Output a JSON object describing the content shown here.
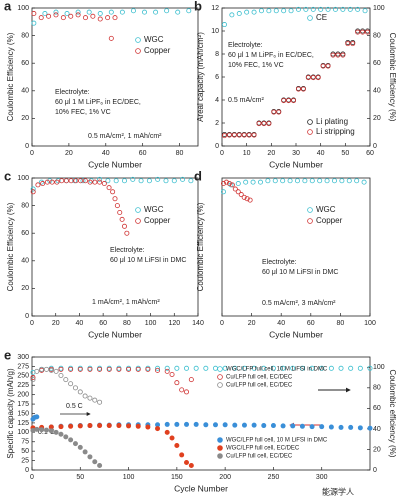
{
  "chart_data": [
    {
      "type": "scatter",
      "panel_label": "a",
      "xlabel": "Cycle Number",
      "ylabel": "Coulombic Efficiency (%)",
      "xlim": [
        0,
        90
      ],
      "xticks": [
        0,
        20,
        40,
        60,
        80
      ],
      "ylim": [
        0,
        100
      ],
      "yticks": [
        0,
        20,
        40,
        60,
        80,
        100
      ],
      "legend": "upper right",
      "annotations": [
        "Electrolyte:",
        "60 μl 1 M LiPF₆ in EC/DEC,",
        "10% FEC, 1% VC",
        "0.5 mA/cm², 1 mAh/cm²"
      ],
      "series": [
        {
          "name": "WGC",
          "color": "#3cbfcf",
          "marker": "open",
          "x": [
            1,
            7,
            13,
            19,
            25,
            31,
            37,
            43,
            49,
            55,
            61,
            67,
            73,
            79,
            85
          ],
          "values": [
            89,
            96,
            97,
            96,
            97,
            97,
            96,
            97,
            97,
            98,
            97,
            97,
            98,
            97,
            98
          ]
        },
        {
          "name": "Copper",
          "color": "#d03434",
          "marker": "open",
          "x": [
            1,
            5,
            9,
            13,
            17,
            21,
            25,
            29,
            33,
            37,
            41,
            43,
            45
          ],
          "values": [
            96,
            93,
            94,
            95,
            93,
            94,
            95,
            93,
            94,
            92,
            93,
            78,
            93
          ]
        }
      ]
    },
    {
      "type": "scatter",
      "panel_label": "b",
      "xlabel": "Cycle Number",
      "ylabel": "Areal capacity (mAh/cm²)",
      "y2label": "Coulombic Efficiency (%)",
      "xlim": [
        0,
        60
      ],
      "xticks": [
        0,
        10,
        20,
        30,
        40,
        50,
        60
      ],
      "ylim": [
        0,
        12
      ],
      "yticks": [
        0,
        2,
        4,
        6,
        8,
        10,
        12
      ],
      "y2lim": [
        0,
        100
      ],
      "y2ticks": [
        0,
        20,
        40,
        60,
        80,
        100
      ],
      "legend": "split",
      "annotations": [
        "Electrolyte:",
        "60 μl 1 M LiPF₆ in EC/DEC,",
        "10% FEC, 1% VC",
        "0.5 mA/cm²"
      ],
      "series": [
        {
          "name": "CE",
          "color": "#3cbfcf",
          "marker": "open",
          "axis": "y2",
          "x": [
            1,
            4,
            7,
            10,
            13,
            16,
            19,
            22,
            25,
            28,
            31,
            34,
            37,
            40,
            43,
            46,
            49,
            52,
            55,
            58
          ],
          "values": [
            88,
            95,
            96,
            97,
            97,
            98,
            98,
            98,
            98,
            98,
            99,
            99,
            99,
            99,
            99,
            99,
            99,
            99,
            99,
            98
          ]
        },
        {
          "name": "Li plating",
          "color": "#222222",
          "marker": "open",
          "x": [
            1,
            3,
            5,
            7,
            9,
            11,
            13,
            15,
            17,
            19,
            21,
            23,
            25,
            27,
            29,
            31,
            33,
            35,
            37,
            39,
            41,
            43,
            45,
            47,
            49,
            51,
            53,
            55,
            57,
            59
          ],
          "values": [
            1,
            1,
            1,
            1,
            1,
            1,
            1,
            2,
            2,
            2,
            3,
            3,
            4,
            4,
            4,
            5,
            5,
            6,
            6,
            6,
            7,
            7,
            8,
            8,
            8,
            9,
            9,
            10,
            10,
            10
          ]
        },
        {
          "name": "Li stripping",
          "color": "#d03434",
          "marker": "open",
          "x": [
            1,
            3,
            5,
            7,
            9,
            11,
            13,
            15,
            17,
            19,
            21,
            23,
            25,
            27,
            29,
            31,
            33,
            35,
            37,
            39,
            41,
            43,
            45,
            47,
            49,
            51,
            53,
            55,
            57,
            59
          ],
          "values": [
            0.9,
            0.95,
            0.95,
            0.95,
            0.95,
            0.95,
            0.95,
            1.95,
            1.95,
            1.95,
            2.95,
            2.95,
            3.95,
            3.95,
            3.95,
            4.95,
            4.95,
            5.95,
            5.95,
            5.95,
            6.95,
            6.95,
            7.9,
            7.9,
            7.9,
            8.9,
            8.9,
            9.9,
            9.9,
            9.9
          ]
        }
      ]
    },
    {
      "type": "scatter",
      "panel_label": "c",
      "xlabel": "Cycle Number",
      "ylabel": "Coulombic Efficiency (%)",
      "xlim": [
        0,
        140
      ],
      "xticks": [
        0,
        20,
        40,
        60,
        80,
        100,
        120,
        140
      ],
      "ylim": [
        0,
        100
      ],
      "yticks": [
        0,
        20,
        40,
        60,
        80,
        100
      ],
      "legend": "upper right",
      "annotations": [
        "Electrolyte:",
        "60 μl 10 M LiFSI in DMC",
        "1 mA/cm², 1 mAh/cm²"
      ],
      "series": [
        {
          "name": "WGC",
          "color": "#3cbfcf",
          "marker": "open",
          "x": [
            1,
            8,
            15,
            22,
            29,
            36,
            43,
            50,
            57,
            64,
            71,
            78,
            85,
            92,
            99,
            106,
            113,
            120,
            127,
            134
          ],
          "values": [
            92,
            97,
            98,
            98,
            98,
            98,
            98,
            98,
            99,
            98,
            98,
            98,
            99,
            98,
            98,
            99,
            98,
            98,
            99,
            98
          ]
        },
        {
          "name": "Copper",
          "color": "#d03434",
          "marker": "open",
          "x": [
            1,
            5,
            9,
            13,
            17,
            21,
            25,
            29,
            33,
            37,
            41,
            45,
            49,
            53,
            57,
            61,
            65,
            68,
            70,
            72,
            74,
            76,
            78,
            80
          ],
          "values": [
            90,
            95,
            96,
            97,
            97,
            97,
            98,
            98,
            98,
            98,
            98,
            98,
            97,
            97,
            97,
            96,
            93,
            90,
            85,
            80,
            75,
            70,
            65,
            60
          ]
        }
      ]
    },
    {
      "type": "scatter",
      "panel_label": "d",
      "xlabel": "Cycle Number",
      "ylabel": "Coulombic Efficiency (%)",
      "xlim": [
        0,
        100
      ],
      "xticks": [
        0,
        20,
        40,
        60,
        80,
        100
      ],
      "ylim": [
        0,
        100
      ],
      "legend": "upper right",
      "annotations": [
        "Electrolyte:",
        "60 μl 10 M LiFSI in DMC",
        "0.5 mA/cm², 3 mAh/cm²"
      ],
      "series": [
        {
          "name": "WGC",
          "color": "#3cbfcf",
          "marker": "open",
          "x": [
            1,
            6,
            11,
            16,
            21,
            26,
            31,
            36,
            41,
            46,
            51,
            56,
            61,
            66,
            71,
            76,
            81,
            86,
            91,
            96
          ],
          "values": [
            90,
            95,
            96,
            97,
            97,
            97,
            98,
            98,
            98,
            98,
            98,
            98,
            98,
            98,
            98,
            98,
            98,
            98,
            98,
            97
          ]
        },
        {
          "name": "Copper",
          "color": "#d03434",
          "marker": "open",
          "x": [
            1,
            3,
            5,
            7,
            9,
            11,
            13,
            15,
            17,
            19
          ],
          "values": [
            96,
            97,
            96,
            95,
            92,
            90,
            88,
            86,
            85,
            84
          ]
        }
      ]
    },
    {
      "type": "scatter",
      "panel_label": "e",
      "xlabel": "Cycle Number",
      "ylabel": "Specific capacity (mAh/g)",
      "y2label": "Coulombic efficiency (%)",
      "xlim": [
        0,
        350
      ],
      "xticks": [
        0,
        50,
        100,
        150,
        200,
        250,
        300
      ],
      "ylim": [
        0,
        300
      ],
      "yticks": [
        0,
        25,
        50,
        75,
        100,
        125,
        150,
        175,
        200,
        225,
        250,
        275,
        300
      ],
      "y2lim": [
        0,
        110
      ],
      "y2ticks": [
        0,
        20,
        40,
        60,
        80,
        100
      ],
      "legend": "split",
      "annotations": [
        "0.5 C",
        "0.1 C"
      ],
      "series": [
        {
          "name": "WGC/LFP full cell, 10 M LiFSI in DMC",
          "color": "#3cbfcf",
          "marker": "open",
          "axis": "y2",
          "x": [
            1,
            10,
            20,
            30,
            40,
            50,
            60,
            70,
            80,
            90,
            100,
            110,
            120,
            130,
            140,
            150,
            160,
            170,
            180,
            190,
            200,
            210,
            220,
            230,
            240,
            250,
            260,
            270,
            280,
            290,
            300,
            310,
            320,
            330,
            340,
            350
          ],
          "values": [
            95,
            98,
            99,
            99,
            99,
            99,
            99,
            99,
            99,
            99,
            99,
            99,
            99,
            99,
            99,
            99,
            99,
            99,
            99,
            99,
            99,
            99,
            99,
            99,
            99,
            99,
            99,
            99,
            99,
            99,
            99,
            99,
            99,
            99,
            99,
            99
          ]
        },
        {
          "name": "Cu/LFP full cell, EC/DEC",
          "color": "#d03434",
          "marker": "open",
          "axis": "y2",
          "x": [
            1,
            10,
            20,
            30,
            40,
            50,
            60,
            70,
            80,
            90,
            100,
            110,
            120,
            130,
            140,
            145,
            150,
            155,
            160,
            165
          ],
          "values": [
            90,
            97,
            98,
            98,
            98,
            98,
            98,
            98,
            98,
            98,
            98,
            98,
            98,
            97,
            96,
            93,
            85,
            78,
            76,
            88
          ]
        },
        {
          "name": "Cu/LFP full cell, EC/DEC",
          "color": "#8a8a8a",
          "marker": "open",
          "axis": "y2",
          "x": [
            1,
            5,
            10,
            15,
            20,
            25,
            30,
            35,
            40,
            45,
            50,
            55,
            60,
            65,
            70
          ],
          "values": [
            88,
            96,
            98,
            98,
            97,
            96,
            92,
            88,
            84,
            80,
            76,
            72,
            70,
            68,
            66
          ]
        },
        {
          "name": "WGC/LFP full cell, 10 M LiFSI in DMC",
          "color": "#3a8fd8",
          "marker": "filled",
          "x": [
            1,
            3,
            5,
            10,
            20,
            30,
            40,
            50,
            60,
            70,
            80,
            90,
            100,
            110,
            120,
            130,
            140,
            150,
            160,
            170,
            180,
            190,
            200,
            210,
            220,
            230,
            240,
            250,
            260,
            270,
            280,
            290,
            300,
            310,
            320,
            330,
            340,
            350
          ],
          "values": [
            135,
            140,
            141,
            110,
            114,
            116,
            117,
            118,
            118,
            119,
            119,
            120,
            120,
            120,
            120,
            120,
            121,
            121,
            121,
            121,
            120,
            120,
            120,
            119,
            119,
            119,
            118,
            118,
            117,
            117,
            116,
            115,
            115,
            114,
            113,
            113,
            112,
            111
          ]
        },
        {
          "name": "WGC/LFP full cell, EC/DEC",
          "color": "#e0401f",
          "marker": "filled",
          "x": [
            1,
            10,
            20,
            30,
            40,
            50,
            60,
            70,
            80,
            90,
            100,
            110,
            120,
            130,
            140,
            145,
            150,
            155,
            160,
            165
          ],
          "values": [
            112,
            113,
            114,
            115,
            116,
            117,
            118,
            118,
            118,
            118,
            117,
            116,
            114,
            110,
            100,
            85,
            65,
            40,
            20,
            12
          ]
        },
        {
          "name": "Cu/LFP full cell, EC/DEC",
          "color": "#8a8a8a",
          "marker": "filled",
          "x": [
            1,
            5,
            10,
            15,
            20,
            25,
            30,
            35,
            40,
            45,
            50,
            55,
            60,
            65,
            70
          ],
          "values": [
            105,
            108,
            107,
            106,
            104,
            100,
            95,
            88,
            80,
            70,
            60,
            48,
            35,
            22,
            12
          ]
        }
      ]
    }
  ],
  "watermark": "能源学人"
}
